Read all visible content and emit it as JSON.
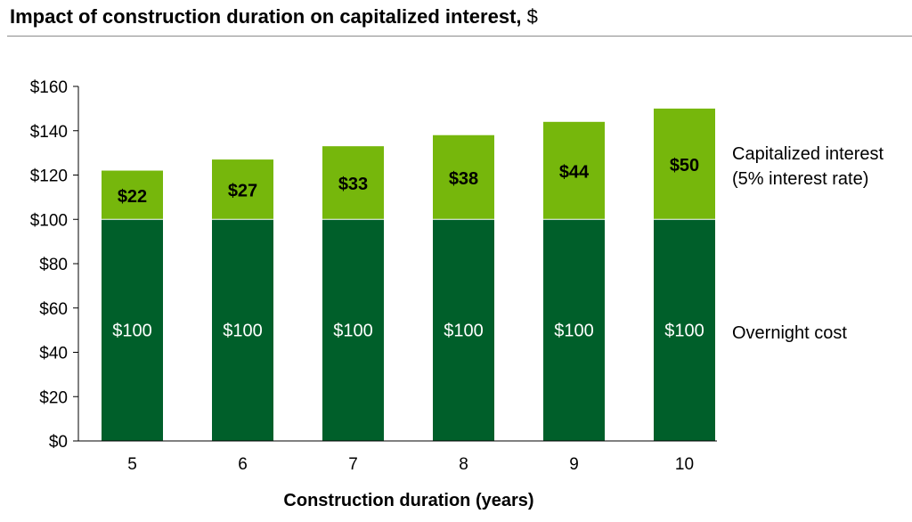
{
  "chart_data": {
    "type": "bar",
    "stacked": true,
    "title": "Impact of construction duration on capitalized interest,",
    "title_unit": "$",
    "xlabel": "Construction duration (years)",
    "ylabel": "",
    "categories": [
      "5",
      "6",
      "7",
      "8",
      "9",
      "10"
    ],
    "ylim": [
      0,
      160
    ],
    "yticks": [
      0,
      20,
      40,
      60,
      80,
      100,
      120,
      140,
      160
    ],
    "ytick_labels": [
      "$0",
      "$20",
      "$40",
      "$60",
      "$80",
      "$100",
      "$120",
      "$140",
      "$160"
    ],
    "series": [
      {
        "name": "Overnight cost",
        "values": [
          100,
          100,
          100,
          100,
          100,
          100
        ],
        "labels": [
          "$100",
          "$100",
          "$100",
          "$100",
          "$100",
          "$100"
        ],
        "color": "#005f2a",
        "label_color": "#ffffff"
      },
      {
        "name": "Capitalized interest",
        "name_line2": "(5% interest rate)",
        "values": [
          22,
          27,
          33,
          38,
          44,
          50
        ],
        "labels": [
          "$22",
          "$27",
          "$33",
          "$38",
          "$44",
          "$50"
        ],
        "color": "#76b70c",
        "label_color": "#000000"
      }
    ],
    "grid": false,
    "legend_position": "right"
  }
}
